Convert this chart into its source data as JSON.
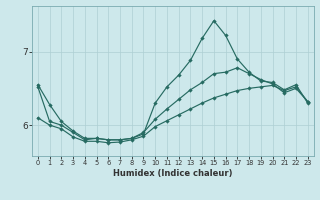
{
  "xlabel": "Humidex (Indice chaleur)",
  "x": [
    0,
    1,
    2,
    3,
    4,
    5,
    6,
    7,
    8,
    9,
    10,
    11,
    12,
    13,
    14,
    15,
    16,
    17,
    18,
    19,
    20,
    21,
    22,
    23
  ],
  "line1": [
    6.55,
    6.28,
    6.05,
    5.92,
    5.82,
    5.82,
    5.8,
    5.8,
    5.82,
    5.88,
    6.3,
    6.52,
    6.68,
    6.88,
    7.18,
    7.42,
    7.22,
    6.9,
    6.72,
    6.6,
    6.58,
    6.48,
    6.55,
    6.3
  ],
  "line2": [
    6.52,
    6.05,
    6.0,
    5.9,
    5.8,
    5.82,
    5.8,
    5.8,
    5.82,
    5.9,
    6.08,
    6.22,
    6.35,
    6.48,
    6.58,
    6.7,
    6.72,
    6.78,
    6.7,
    6.62,
    6.56,
    6.44,
    6.5,
    6.32
  ],
  "line3": [
    6.1,
    6.0,
    5.95,
    5.84,
    5.78,
    5.78,
    5.76,
    5.77,
    5.8,
    5.85,
    5.98,
    6.06,
    6.14,
    6.22,
    6.3,
    6.37,
    6.42,
    6.47,
    6.5,
    6.52,
    6.54,
    6.47,
    6.52,
    6.32
  ],
  "bg_color": "#cde8eb",
  "grid_color": "#aecfd4",
  "line_color": "#276b62",
  "yticks": [
    6,
    7
  ],
  "ylim": [
    5.58,
    7.62
  ],
  "xlim": [
    -0.5,
    23.5
  ]
}
